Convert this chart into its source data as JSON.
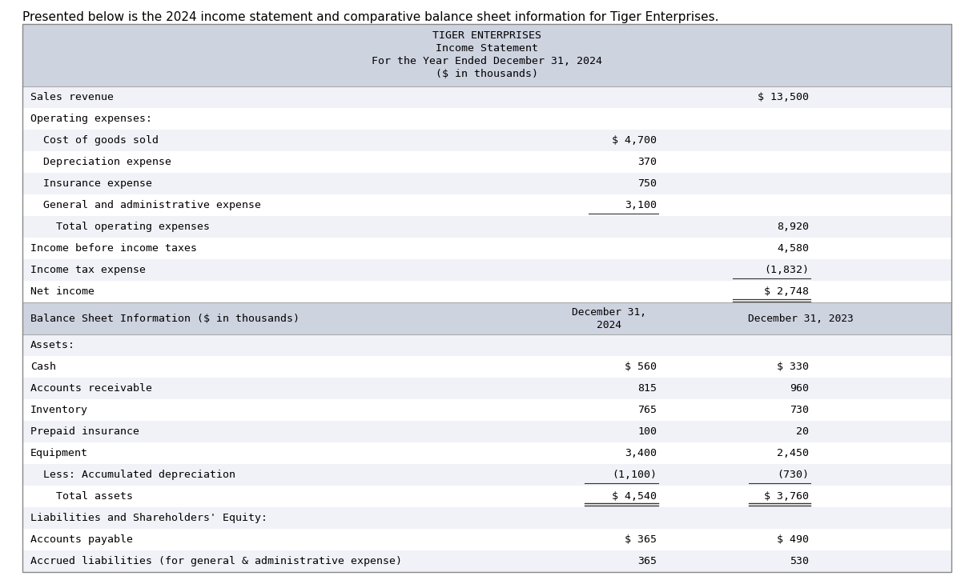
{
  "title_text": "Presented below is the 2024 income statement and comparative balance sheet information for Tiger Enterprises.",
  "header_lines": [
    "TIGER ENTERPRISES",
    "Income Statement",
    "For the Year Ended December 31, 2024",
    "($ in thousands)"
  ],
  "header_bg": "#ced3e0",
  "table_bg": "#ffffff",
  "row_bg_alt": "#f0f2f7",
  "income_rows": [
    {
      "label": "Sales revenue",
      "col1": "",
      "col2": "$ 13,500",
      "ul1": false,
      "ul2": false
    },
    {
      "label": "Operating expenses:",
      "col1": "",
      "col2": "",
      "ul1": false,
      "ul2": false
    },
    {
      "label": "  Cost of goods sold",
      "col1": "$ 4,700",
      "col2": "",
      "ul1": false,
      "ul2": false
    },
    {
      "label": "  Depreciation expense",
      "col1": "370",
      "col2": "",
      "ul1": false,
      "ul2": false
    },
    {
      "label": "  Insurance expense",
      "col1": "750",
      "col2": "",
      "ul1": false,
      "ul2": false
    },
    {
      "label": "  General and administrative expense",
      "col1": "3,100",
      "col2": "",
      "ul1": true,
      "ul2": false
    },
    {
      "label": "    Total operating expenses",
      "col1": "",
      "col2": "8,920",
      "ul1": false,
      "ul2": false
    },
    {
      "label": "Income before income taxes",
      "col1": "",
      "col2": "4,580",
      "ul1": false,
      "ul2": false
    },
    {
      "label": "Income tax expense",
      "col1": "",
      "col2": "(1,832)",
      "ul1": false,
      "ul2": true
    },
    {
      "label": "Net income",
      "col1": "",
      "col2": "$ 2,748",
      "ul1": false,
      "ul2": false,
      "double_ul2": true
    }
  ],
  "balance_header": "Balance Sheet Information ($ in thousands)",
  "balance_col1_header_line1": "December 31,",
  "balance_col1_header_line2": "2024",
  "balance_col2_header": "December 31, 2023",
  "balance_rows": [
    {
      "label": "Assets:",
      "col1": "",
      "col2": "",
      "ul1": false,
      "ul2": false,
      "dul1": false,
      "dul2": false
    },
    {
      "label": "Cash",
      "col1": "$ 560",
      "col2": "$ 330",
      "ul1": false,
      "ul2": false,
      "dul1": false,
      "dul2": false
    },
    {
      "label": "Accounts receivable",
      "col1": "815",
      "col2": "960",
      "ul1": false,
      "ul2": false,
      "dul1": false,
      "dul2": false
    },
    {
      "label": "Inventory",
      "col1": "765",
      "col2": "730",
      "ul1": false,
      "ul2": false,
      "dul1": false,
      "dul2": false
    },
    {
      "label": "Prepaid insurance",
      "col1": "100",
      "col2": "20",
      "ul1": false,
      "ul2": false,
      "dul1": false,
      "dul2": false
    },
    {
      "label": "Equipment",
      "col1": "3,400",
      "col2": "2,450",
      "ul1": false,
      "ul2": false,
      "dul1": false,
      "dul2": false
    },
    {
      "label": "  Less: Accumulated depreciation",
      "col1": "(1,100)",
      "col2": "(730)",
      "ul1": true,
      "ul2": true,
      "dul1": false,
      "dul2": false
    },
    {
      "label": "    Total assets",
      "col1": "$ 4,540",
      "col2": "$ 3,760",
      "ul1": false,
      "ul2": false,
      "dul1": true,
      "dul2": true
    },
    {
      "label": "Liabilities and Shareholders' Equity:",
      "col1": "",
      "col2": "",
      "ul1": false,
      "ul2": false,
      "dul1": false,
      "dul2": false
    },
    {
      "label": "Accounts payable",
      "col1": "$ 365",
      "col2": "$ 490",
      "ul1": false,
      "ul2": false,
      "dul1": false,
      "dul2": false
    },
    {
      "label": "Accrued liabilities (for general & administrative expense)",
      "col1": "365",
      "col2": "530",
      "ul1": false,
      "ul2": false,
      "dul1": false,
      "dul2": false
    }
  ],
  "bg_color": "#ffffff"
}
